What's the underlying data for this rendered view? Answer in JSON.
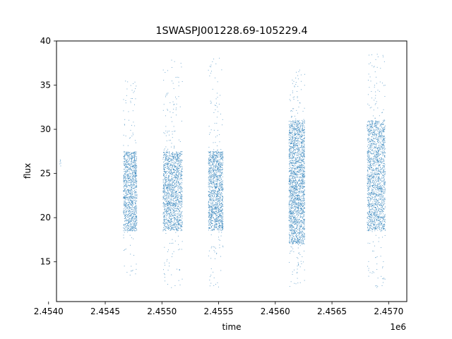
{
  "chart_data": {
    "type": "scatter",
    "title": "1SWASPJ001228.69-105229.4",
    "xlabel": "time",
    "ylabel": "flux",
    "x_offset_label": "1e6",
    "xlim": [
      2.45407,
      2.45716
    ],
    "ylim": [
      10.5,
      40
    ],
    "x_ticks": [
      2.454,
      2.4545,
      2.455,
      2.4555,
      2.456,
      2.4565,
      2.457
    ],
    "x_tick_labels": [
      "2.4540",
      "2.4545",
      "2.4550",
      "2.4555",
      "2.4560",
      "2.4565",
      "2.4570"
    ],
    "y_ticks": [
      15,
      20,
      25,
      30,
      35,
      40
    ],
    "y_tick_labels": [
      "15",
      "20",
      "25",
      "30",
      "35",
      "40"
    ],
    "grid": false,
    "legend": "none",
    "marker_color": "#1f77b4",
    "series": [
      {
        "segments": [
          {
            "x_range": [
              2.4541,
              2.45411
            ],
            "y_core": [
              25.8,
              26.8
            ],
            "y_tail": [
              25.8,
              26.8
            ],
            "points": 6
          },
          {
            "x_range": [
              2.45466,
              2.45478
            ],
            "y_core": [
              18.5,
              27.5
            ],
            "y_tail": [
              13.5,
              35.5
            ],
            "points": 1200
          },
          {
            "x_range": [
              2.45501,
              2.45518
            ],
            "y_core": [
              18.5,
              27.5
            ],
            "y_tail": [
              12.0,
              38.0
            ],
            "points": 1600
          },
          {
            "x_range": [
              2.45541,
              2.45554
            ],
            "y_core": [
              18.5,
              27.5
            ],
            "y_tail": [
              12.0,
              38.7
            ],
            "points": 1400
          },
          {
            "x_range": [
              2.45612,
              2.45626
            ],
            "y_core": [
              17.0,
              31.0
            ],
            "y_tail": [
              12.0,
              37.0
            ],
            "points": 2200
          },
          {
            "x_range": [
              2.45681,
              2.45697
            ],
            "y_core": [
              18.5,
              31.0
            ],
            "y_tail": [
              12.0,
              38.5
            ],
            "points": 1800
          }
        ]
      }
    ]
  }
}
